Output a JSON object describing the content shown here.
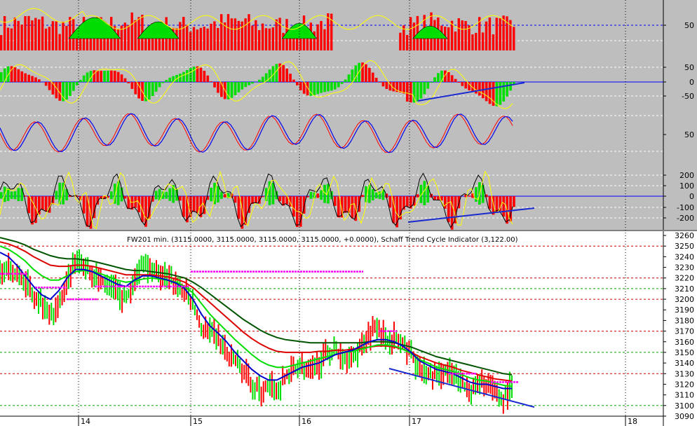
{
  "window": {
    "price_header": "FW201 min. (3115.0000, 3115.0000, 3115.0000, 3115.0000, +0.0000), Schaff Trend Cycle Indicator (3,122.00)"
  },
  "colors": {
    "indicator_background": "#bebebe",
    "price_background": "#ffffff",
    "up_bar": "#ff0000",
    "down_bar": "#00dd00",
    "fast_line": "#ff0000",
    "mid_line": "#0000ee",
    "signal_line": "#ffff00",
    "ema_blue": "#0000cc",
    "ema_green": "#00dd00",
    "ema_red": "#dd0000",
    "ema_dark": "#005500",
    "pivot_marker": "#ff00ff",
    "trendline": "#1a2bd0"
  },
  "chart_data": [
    {
      "type": "bar",
      "panel": "indicator-1",
      "y_ticks": [
        "50"
      ],
      "ylim": [
        0,
        100
      ]
    },
    {
      "type": "bar",
      "panel": "indicator-2",
      "y_ticks": [
        "50",
        "0",
        "-50"
      ],
      "ylim": [
        -75,
        75
      ]
    },
    {
      "type": "line",
      "panel": "indicator-3",
      "y_ticks": [
        "50"
      ],
      "ylim": [
        0,
        100
      ]
    },
    {
      "type": "bar",
      "panel": "indicator-4",
      "y_ticks": [
        "200",
        "100",
        "0",
        "-100",
        "-200"
      ],
      "ylim": [
        -260,
        260
      ]
    },
    {
      "type": "line",
      "panel": "price",
      "title": "FW201 min. (3115.0000, 3115.0000, 3115.0000, 3115.0000, +0.0000), Schaff Trend Cycle Indicator (3,122.00)",
      "x_ticks": [
        "14",
        "15",
        "16",
        "17",
        "18"
      ],
      "y_ticks": [
        "3260",
        "3250",
        "3240",
        "3230",
        "3220",
        "3210",
        "3200",
        "3190",
        "3180",
        "3170",
        "3160",
        "3150",
        "3140",
        "3130",
        "3120",
        "3110",
        "3100",
        "3090"
      ],
      "ylim": [
        3086,
        3264
      ],
      "price_path": [
        3228,
        3226,
        3224,
        3218,
        3205,
        3198,
        3185,
        3195,
        3212,
        3236,
        3232,
        3226,
        3218,
        3212,
        3208,
        3200,
        3215,
        3238,
        3228,
        3222,
        3220,
        3214,
        3208,
        3196,
        3172,
        3170,
        3164,
        3150,
        3142,
        3132,
        3120,
        3114,
        3118,
        3112,
        3128,
        3134,
        3138,
        3130,
        3140,
        3148,
        3152,
        3146,
        3144,
        3156,
        3168,
        3176,
        3162,
        3164,
        3156,
        3150,
        3132,
        3130,
        3128,
        3132,
        3128,
        3120,
        3114,
        3118,
        3122,
        3110,
        3106,
        3118
      ],
      "emas": [
        {
          "color_key": "ema_blue",
          "values": [
            3244,
            3240,
            3232,
            3222,
            3212,
            3204,
            3200,
            3208,
            3220,
            3228,
            3228,
            3226,
            3222,
            3218,
            3214,
            3212,
            3218,
            3222,
            3222,
            3220,
            3218,
            3215,
            3210,
            3200,
            3186,
            3175,
            3168,
            3160,
            3150,
            3142,
            3134,
            3128,
            3124,
            3124,
            3128,
            3132,
            3136,
            3138,
            3140,
            3144,
            3148,
            3150,
            3152,
            3156,
            3160,
            3162,
            3162,
            3160,
            3156,
            3150,
            3142,
            3138,
            3134,
            3132,
            3130,
            3126,
            3122,
            3120,
            3120,
            3118,
            3116,
            3116
          ]
        },
        {
          "color_key": "ema_green",
          "values": [
            3250,
            3247,
            3242,
            3236,
            3228,
            3222,
            3218,
            3218,
            3222,
            3226,
            3227,
            3226,
            3224,
            3221,
            3218,
            3216,
            3217,
            3219,
            3220,
            3219,
            3218,
            3216,
            3212,
            3206,
            3196,
            3186,
            3178,
            3170,
            3162,
            3155,
            3148,
            3142,
            3138,
            3136,
            3136,
            3138,
            3140,
            3142,
            3144,
            3146,
            3148,
            3150,
            3151,
            3153,
            3155,
            3157,
            3157,
            3156,
            3153,
            3149,
            3143,
            3140,
            3136,
            3134,
            3132,
            3129,
            3126,
            3124,
            3123,
            3121,
            3119,
            3118
          ]
        },
        {
          "color_key": "ema_red",
          "values": [
            3254,
            3252,
            3249,
            3245,
            3240,
            3236,
            3232,
            3231,
            3231,
            3232,
            3232,
            3231,
            3229,
            3227,
            3225,
            3223,
            3223,
            3223,
            3223,
            3222,
            3221,
            3219,
            3216,
            3211,
            3204,
            3197,
            3190,
            3183,
            3176,
            3169,
            3163,
            3158,
            3154,
            3151,
            3150,
            3150,
            3150,
            3150,
            3151,
            3151,
            3152,
            3152,
            3153,
            3154,
            3155,
            3156,
            3156,
            3155,
            3153,
            3150,
            3146,
            3143,
            3140,
            3138,
            3136,
            3133,
            3131,
            3129,
            3127,
            3125,
            3124,
            3123
          ]
        },
        {
          "color_key": "ema_dark",
          "values": [
            3258,
            3256,
            3254,
            3251,
            3247,
            3244,
            3241,
            3239,
            3238,
            3238,
            3237,
            3236,
            3234,
            3232,
            3230,
            3228,
            3227,
            3227,
            3226,
            3225,
            3224,
            3222,
            3220,
            3216,
            3211,
            3205,
            3199,
            3193,
            3187,
            3181,
            3176,
            3171,
            3167,
            3164,
            3162,
            3161,
            3160,
            3159,
            3159,
            3159,
            3159,
            3159,
            3159,
            3159,
            3160,
            3160,
            3160,
            3159,
            3157,
            3155,
            3152,
            3149,
            3146,
            3144,
            3142,
            3140,
            3138,
            3136,
            3134,
            3132,
            3130,
            3129
          ]
        }
      ]
    }
  ]
}
